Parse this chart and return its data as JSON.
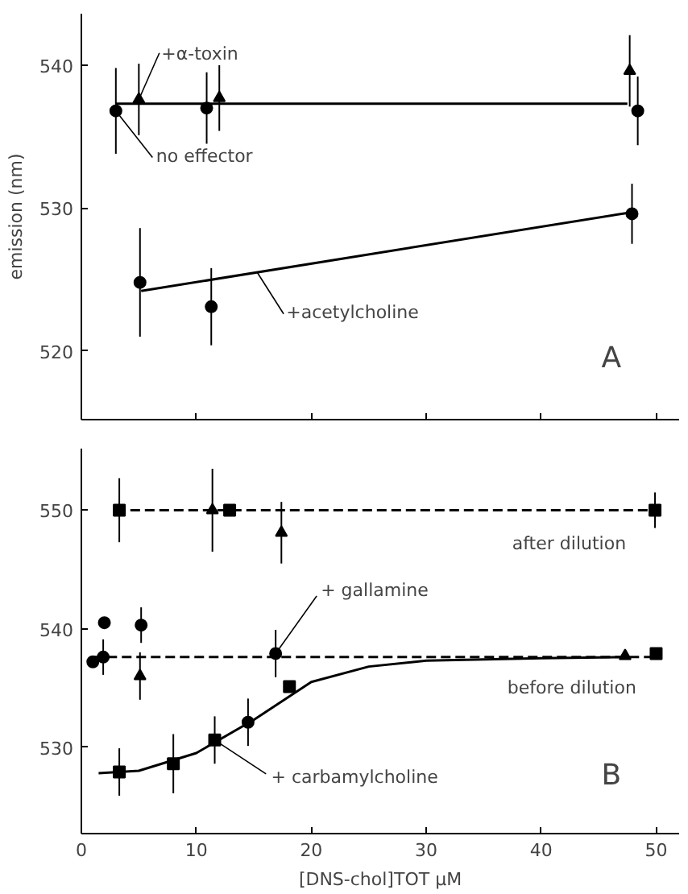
{
  "chart_data": [
    {
      "type": "scatter",
      "ylabel": "emission (nm)",
      "xlim": [
        0,
        52
      ],
      "ylim": [
        515.2,
        543.6
      ],
      "xticks": [
        0,
        10,
        20,
        30,
        40,
        50
      ],
      "yticks": [
        520,
        530,
        540
      ],
      "tick_labels": "y",
      "grid": false,
      "series": [
        {
          "type": "line",
          "color": "#000000",
          "x": [
            3,
            47.5
          ],
          "values": [
            537.3,
            537.3
          ],
          "line_style": "solid"
        },
        {
          "type": "line",
          "color": "#000000",
          "x": [
            5.2,
            47.8
          ],
          "values": [
            524.2,
            529.7
          ],
          "line_style": "solid"
        },
        {
          "marker": "circle",
          "color": "#000000",
          "x": [
            3.0,
            10.9,
            48.4
          ],
          "values": [
            536.8,
            537.0,
            536.8
          ],
          "errors": [
            3,
            2.5,
            2.4
          ]
        },
        {
          "marker": "triangle",
          "color": "#000000",
          "x": [
            5.0,
            12.0,
            47.7
          ],
          "values": [
            537.6,
            537.7,
            539.6
          ],
          "errors": [
            2.5,
            2.3,
            2.5
          ]
        },
        {
          "marker": "circle",
          "color": "#000000",
          "x": [
            5.1,
            11.3,
            47.9
          ],
          "values": [
            524.8,
            523.1,
            529.6
          ],
          "errors": [
            3.8,
            2.7,
            2.1
          ]
        }
      ],
      "annotations": [
        {
          "text": "+α-toxin",
          "x": 5.0,
          "y": 537.6
        },
        {
          "text": "no effector",
          "x": 3.0,
          "y": 536.8
        },
        {
          "text": "+acetylcholine",
          "x": 15.3,
          "y": 525.5
        },
        "A"
      ]
    },
    {
      "type": "scatter",
      "xlabel": "[DNS-chol]TOT μM",
      "xlim": [
        0,
        52
      ],
      "ylim": [
        522.7,
        555.2
      ],
      "xticks": [
        0,
        10,
        20,
        30,
        40,
        50
      ],
      "yticks": [
        530,
        540,
        550
      ],
      "grid": false,
      "series": [
        {
          "type": "line",
          "color": "#000000",
          "x": [
            3,
            50
          ],
          "values": [
            550,
            550
          ],
          "line_style": "dashed"
        },
        {
          "type": "line",
          "color": "#000000",
          "x": [
            1,
            50
          ],
          "values": [
            537.6,
            537.6
          ],
          "line_style": "dashed"
        },
        {
          "type": "line",
          "color": "#000000",
          "x": [
            1.5,
            5,
            10,
            15,
            20,
            25,
            30,
            40,
            47
          ],
          "values": [
            527.8,
            528,
            529.5,
            532.3,
            535.5,
            536.8,
            537.3,
            537.5,
            537.6
          ],
          "line_style": "solid"
        },
        {
          "marker": "square",
          "color": "#000000",
          "x": [
            3.3,
            12.9,
            49.9
          ],
          "values": [
            550.0,
            550.0,
            550.0
          ],
          "errors": [
            2.7,
            null,
            1.5
          ]
        },
        {
          "marker": "triangle",
          "color": "#000000",
          "x": [
            11.4,
            17.4
          ],
          "values": [
            550.0,
            548.1
          ],
          "errors": [
            3.5,
            2.6
          ]
        },
        {
          "marker": "circle",
          "color": "#000000",
          "x": [
            2.0,
            5.2
          ],
          "values": [
            540.5,
            540.3
          ],
          "errors": [
            null,
            1.5
          ]
        },
        {
          "marker": "circle",
          "color": "#000000",
          "x": [
            1.0,
            1.9,
            16.9
          ],
          "values": [
            537.2,
            537.6,
            537.9
          ],
          "errors": [
            null,
            1.5,
            2
          ]
        },
        {
          "marker": "triangle",
          "color": "#000000",
          "x": [
            5.1,
            47.3
          ],
          "values": [
            536.0,
            537.7
          ],
          "errors": [
            2,
            null
          ]
        },
        {
          "marker": "square",
          "color": "#000000",
          "x": [
            3.3,
            8.0,
            11.6,
            18.1,
            50.0
          ],
          "values": [
            527.9,
            528.6,
            530.6,
            535.1,
            537.9
          ],
          "errors": [
            2,
            2.5,
            2,
            null,
            null
          ]
        },
        {
          "marker": "circle",
          "color": "#000000",
          "x": [
            14.5
          ],
          "values": [
            532.1
          ],
          "errors": [
            2
          ]
        }
      ],
      "annotations": [
        {
          "text": "after dilution",
          "x": 40,
          "y": 550
        },
        {
          "text": "+ gallamine",
          "x": 16.9,
          "y": 537.9
        },
        {
          "text": "before dilution",
          "x": 40,
          "y": 537.6
        },
        {
          "text": "+ carbamylcholine",
          "x": 11.6,
          "y": 530.6
        },
        "B"
      ]
    }
  ]
}
